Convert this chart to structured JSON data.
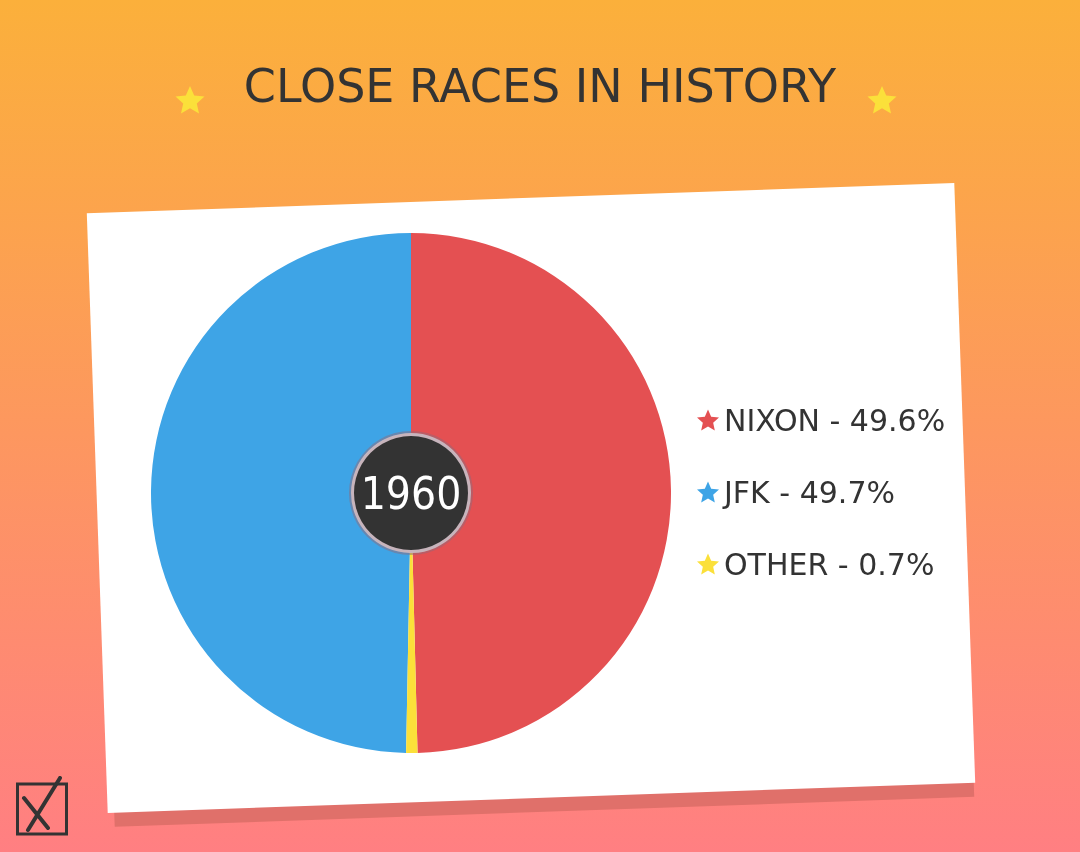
{
  "chart_data": {
    "type": "donut",
    "title": "CLOSE RACES IN HISTORY",
    "categories": [
      "NIXON - 49.6%",
      "JFK - 49.7%",
      "OTHER - 0.7%"
    ],
    "values": [
      49.6,
      49.7,
      0.7
    ],
    "colors": [
      "#e45052",
      "#3ea4e6",
      "#fbe03a"
    ],
    "annotations": [
      "1960"
    ],
    "legend": "right"
  }
}
